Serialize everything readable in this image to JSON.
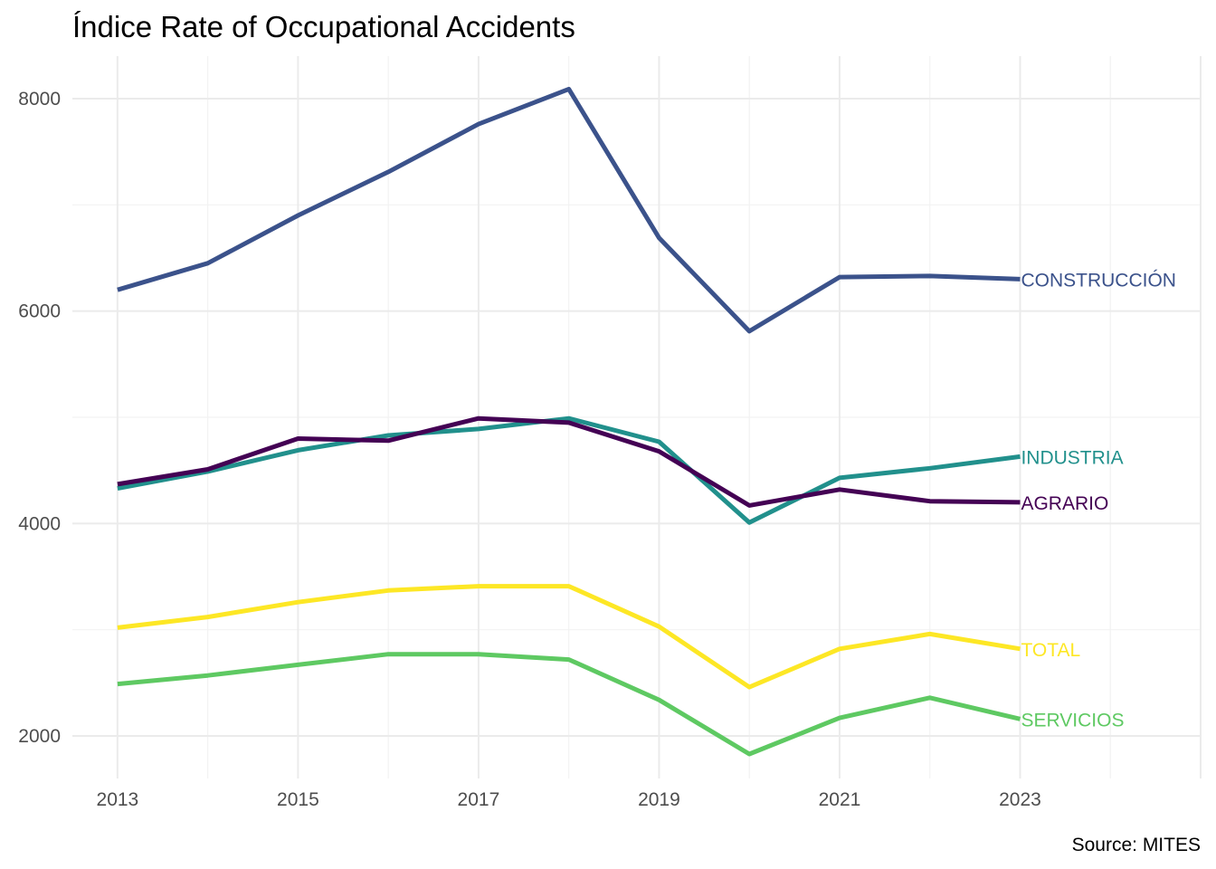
{
  "chart_data": {
    "type": "line",
    "title": "Índice Rate of Occupational Accidents",
    "caption": "Source: MITES",
    "xlabel": "",
    "ylabel": "",
    "x": [
      2013,
      2014,
      2015,
      2016,
      2017,
      2018,
      2019,
      2020,
      2021,
      2022,
      2023
    ],
    "xlim": [
      2012.5,
      2025
    ],
    "ylim": [
      1600,
      8400
    ],
    "x_ticks": [
      2013,
      2015,
      2017,
      2019,
      2021,
      2023
    ],
    "y_ticks": [
      2000,
      4000,
      6000,
      8000
    ],
    "grid": true,
    "legend": "direct labels at line ends",
    "series": [
      {
        "name": "CONSTRUCCIÓN",
        "color": "#3b528b",
        "values": [
          6200,
          6450,
          6900,
          7310,
          7760,
          8090,
          6690,
          5810,
          6320,
          6330,
          6300
        ]
      },
      {
        "name": "INDUSTRIA",
        "color": "#21908c",
        "values": [
          4330,
          4490,
          4690,
          4830,
          4890,
          4990,
          4770,
          4010,
          4430,
          4520,
          4630
        ]
      },
      {
        "name": "AGRARIO",
        "color": "#440154",
        "values": [
          4370,
          4510,
          4800,
          4780,
          4990,
          4950,
          4680,
          4170,
          4320,
          4210,
          4200
        ]
      },
      {
        "name": "TOTAL",
        "color": "#fde725",
        "values": [
          3020,
          3120,
          3260,
          3370,
          3410,
          3410,
          3030,
          2460,
          2820,
          2960,
          2820
        ]
      },
      {
        "name": "SERVICIOS",
        "color": "#5ec962",
        "values": [
          2490,
          2570,
          2670,
          2770,
          2770,
          2720,
          2340,
          1830,
          2170,
          2360,
          2160
        ]
      }
    ]
  }
}
